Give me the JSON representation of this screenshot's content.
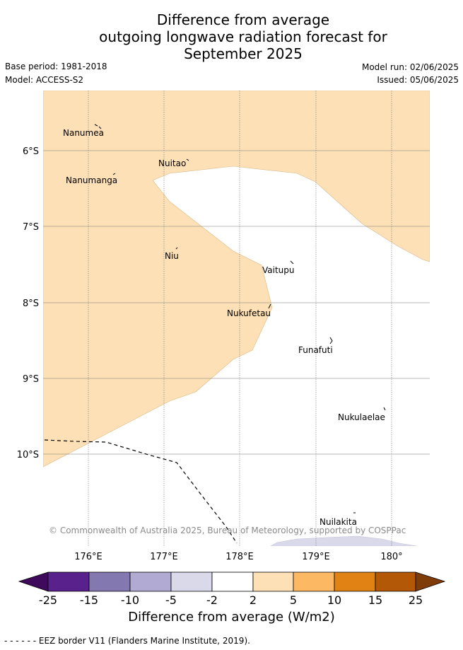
{
  "title_lines": [
    "Difference from average",
    "outgoing longwave radiation forecast for",
    "September 2025"
  ],
  "base_period": "Base period: 1981-2018",
  "model": "Model: ACCESS-S2",
  "model_run": "Model run: 02/06/2025",
  "issued": "Issued: 05/06/2025",
  "latitude_labels": [
    "6°S",
    "7°S",
    "8°S",
    "9°S",
    "10°S"
  ],
  "longitude_labels": [
    "176°E",
    "177°E",
    "178°E",
    "179°E",
    "180°"
  ],
  "places": [
    "Nanumea",
    "Nuitao",
    "Nanumanga",
    "Niu",
    "Vaitupu",
    "Nukufetau",
    "Funafuti",
    "Nukulaelae",
    "Nuilakita"
  ],
  "copyright": "© Commonwealth of Australia 2025, Bureau of Meteorology, supported by COSPPac",
  "legend": {
    "tick_labels": [
      "-25",
      "-15",
      "-10",
      "-5",
      "-2",
      "2",
      "5",
      "10",
      "15",
      "25"
    ],
    "colors": [
      "#3f0a5c",
      "#58218b",
      "#8478b0",
      "#b1aad2",
      "#d9d9ea",
      "#ffffff",
      "#fde0b6",
      "#fdb863",
      "#e08214",
      "#b35806",
      "#7f3b08"
    ],
    "title": "Difference from average (W/m2)"
  },
  "eez_note": "- -  - -  - - EEZ border V11 (Flanders Marine Institute, 2019).",
  "map_colors": {
    "positive_fill": "#fde0b6",
    "negative_fill": "#d9d9ea",
    "neutral_fill": "#ffffff",
    "grid": "#777777",
    "eez_line": "#000000"
  }
}
